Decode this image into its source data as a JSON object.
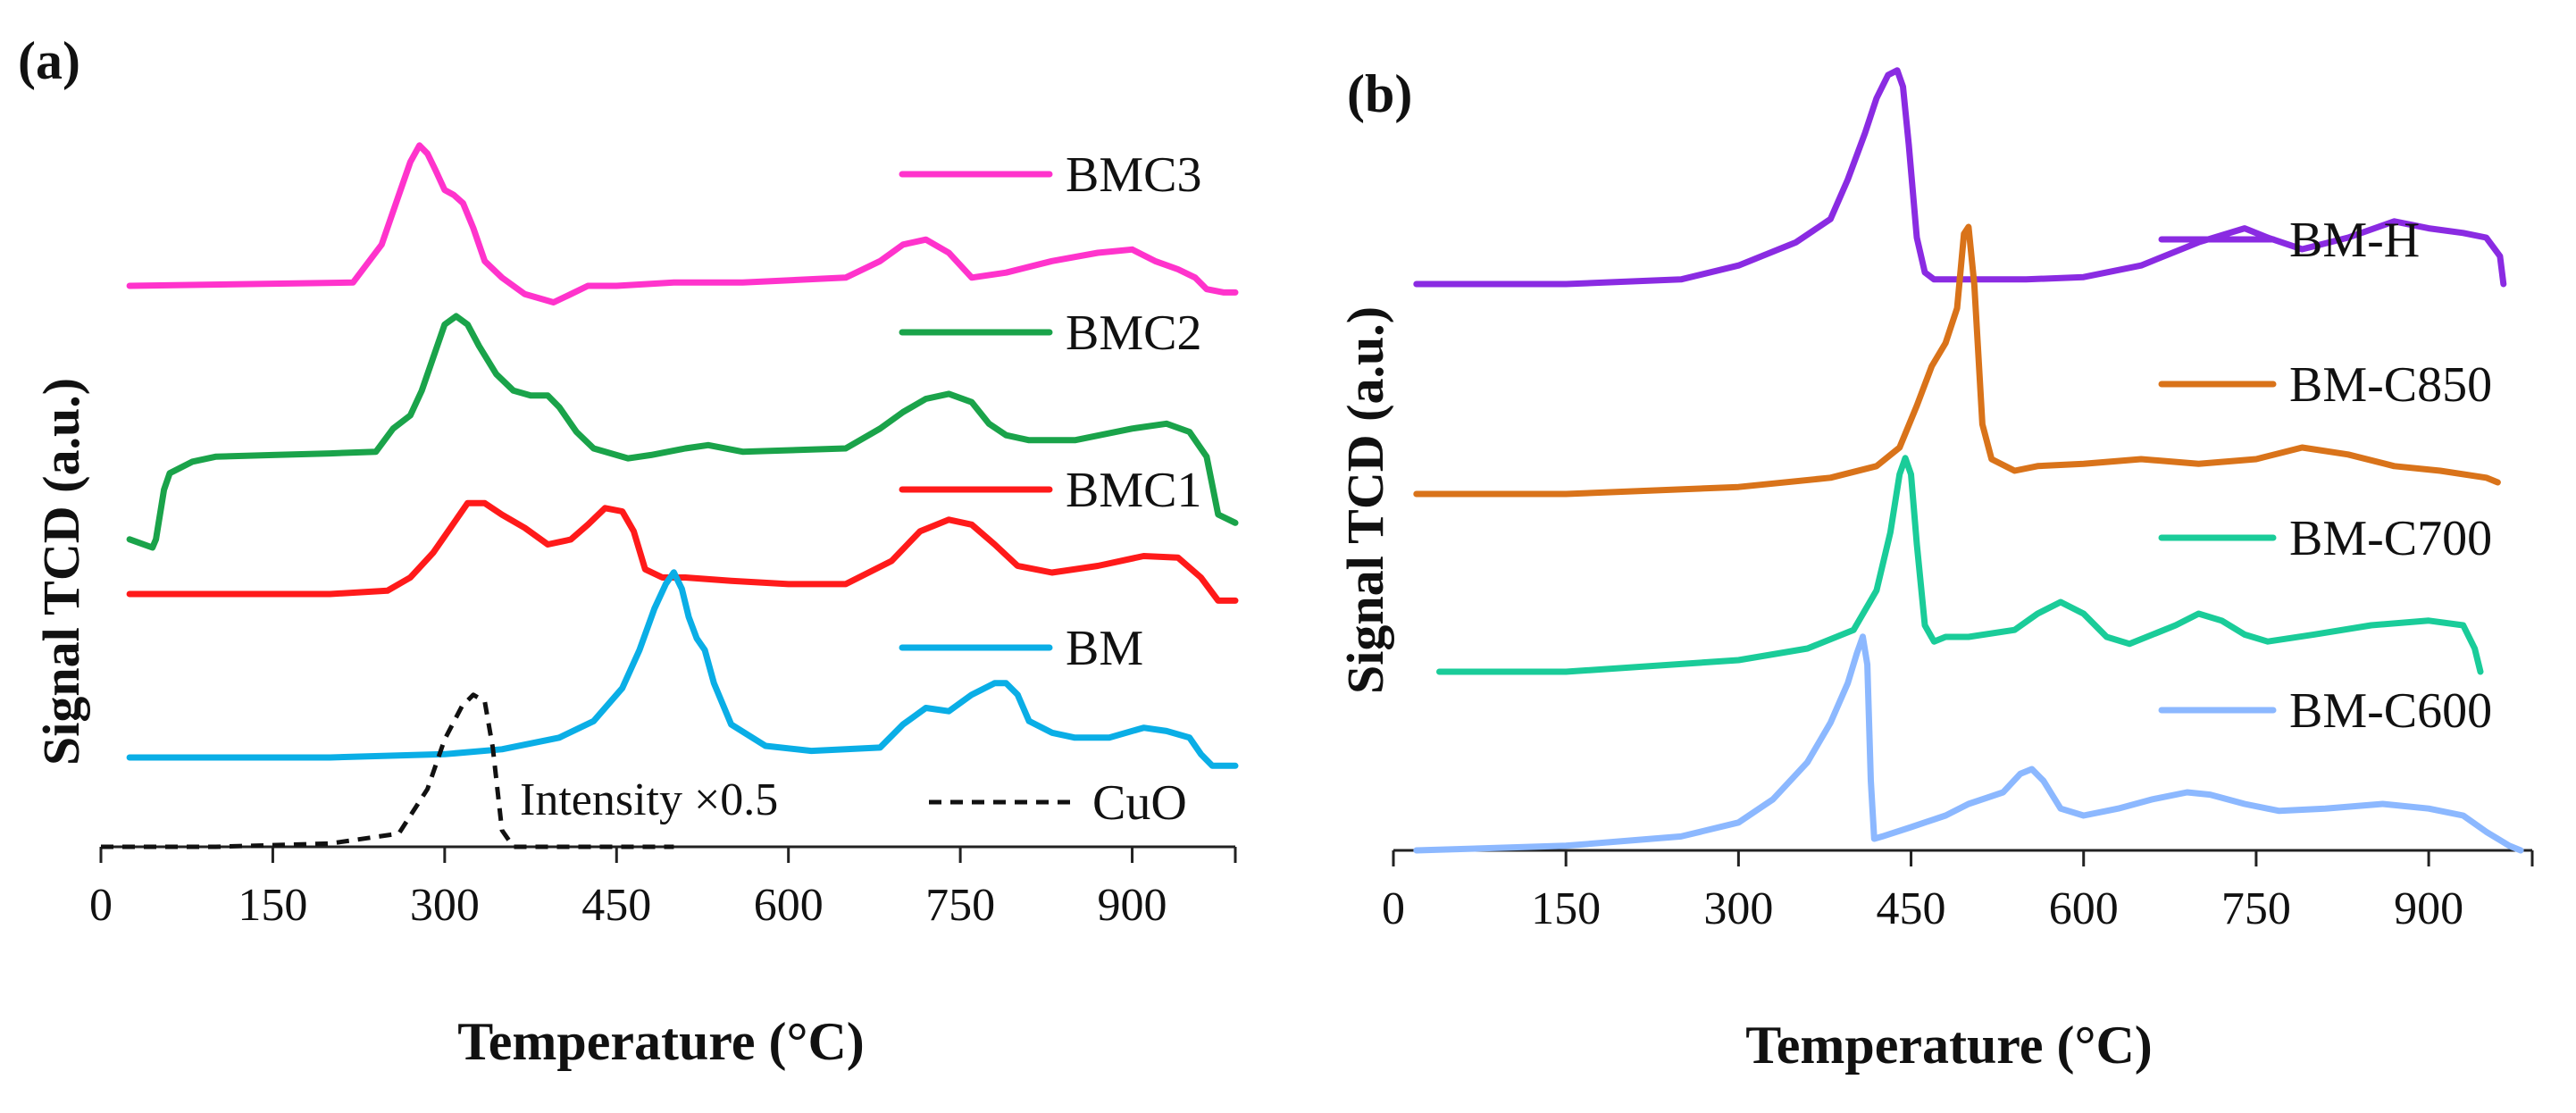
{
  "chart_data": [
    {
      "panel": "(a)",
      "type": "line",
      "xlabel": "Temperature (°C)",
      "ylabel": "Signal TCD (a.u.)",
      "xlim": [
        0,
        990
      ],
      "xticks": [
        "0",
        "150",
        "300",
        "450",
        "600",
        "750",
        "900"
      ],
      "xtick_values": [
        0,
        150,
        300,
        450,
        600,
        750,
        900
      ],
      "yaxis": "offset, arbitrary units",
      "annotation": "Intensity ×0.5",
      "series": [
        {
          "name": "BMC3",
          "color": "#ff33cc",
          "offset": 3.2,
          "x": [
            25,
            220,
            245,
            260,
            270,
            278,
            285,
            292,
            300,
            308,
            316,
            325,
            335,
            350,
            370,
            395,
            410,
            425,
            450,
            500,
            560,
            650,
            680,
            700,
            720,
            740,
            760,
            790,
            830,
            870,
            900,
            920,
            940,
            955,
            965,
            980,
            990
          ],
          "y": [
            0,
            0.02,
            0.25,
            0.55,
            0.75,
            0.85,
            0.8,
            0.7,
            0.58,
            0.55,
            0.5,
            0.35,
            0.15,
            0.05,
            -0.05,
            -0.1,
            -0.05,
            0,
            0,
            0.02,
            0.02,
            0.05,
            0.15,
            0.25,
            0.28,
            0.2,
            0.05,
            0.08,
            0.15,
            0.2,
            0.22,
            0.15,
            0.1,
            0.05,
            -0.02,
            -0.04,
            -0.04
          ]
        },
        {
          "name": "BMC2",
          "color": "#1aa34a",
          "offset": 2.0,
          "x": [
            25,
            45,
            48,
            55,
            60,
            80,
            100,
            150,
            200,
            240,
            255,
            270,
            280,
            290,
            300,
            310,
            320,
            330,
            345,
            360,
            375,
            390,
            400,
            415,
            430,
            460,
            480,
            510,
            530,
            560,
            650,
            680,
            700,
            720,
            740,
            760,
            775,
            790,
            810,
            850,
            900,
            930,
            950,
            965,
            975,
            990
          ],
          "y": [
            -0.55,
            -0.6,
            -0.55,
            -0.25,
            -0.15,
            -0.08,
            -0.05,
            -0.04,
            -0.03,
            -0.02,
            0.12,
            0.2,
            0.35,
            0.55,
            0.75,
            0.8,
            0.75,
            0.62,
            0.45,
            0.35,
            0.32,
            0.32,
            0.25,
            0.1,
            0,
            -0.06,
            -0.04,
            0,
            0.02,
            -0.02,
            0,
            0.12,
            0.22,
            0.3,
            0.33,
            0.28,
            0.15,
            0.08,
            0.05,
            0.05,
            0.12,
            0.15,
            0.1,
            -0.05,
            -0.4,
            -0.45
          ]
        },
        {
          "name": "BMC1",
          "color": "#ff1a1a",
          "offset": 1.0,
          "x": [
            25,
            200,
            250,
            270,
            290,
            305,
            320,
            335,
            350,
            370,
            390,
            410,
            425,
            440,
            455,
            465,
            475,
            490,
            510,
            550,
            600,
            650,
            690,
            715,
            740,
            760,
            780,
            800,
            830,
            870,
            910,
            940,
            960,
            975,
            990
          ],
          "y": [
            0,
            0,
            0.02,
            0.1,
            0.25,
            0.4,
            0.55,
            0.55,
            0.48,
            0.4,
            0.3,
            0.33,
            0.42,
            0.52,
            0.5,
            0.38,
            0.15,
            0.1,
            0.1,
            0.08,
            0.06,
            0.06,
            0.2,
            0.38,
            0.45,
            0.42,
            0.3,
            0.17,
            0.13,
            0.17,
            0.23,
            0.22,
            0.1,
            -0.04,
            -0.04
          ]
        },
        {
          "name": "BM",
          "color": "#0aaee6",
          "offset": 0.0,
          "x": [
            25,
            200,
            300,
            350,
            400,
            430,
            455,
            470,
            483,
            493,
            500,
            507,
            513,
            520,
            527,
            535,
            550,
            580,
            620,
            680,
            700,
            720,
            740,
            760,
            780,
            790,
            800,
            810,
            830,
            850,
            880,
            910,
            930,
            950,
            960,
            970,
            990
          ],
          "y": [
            0,
            0,
            0.02,
            0.05,
            0.12,
            0.22,
            0.42,
            0.65,
            0.9,
            1.05,
            1.12,
            1.02,
            0.85,
            0.72,
            0.65,
            0.45,
            0.2,
            0.07,
            0.04,
            0.06,
            0.2,
            0.3,
            0.28,
            0.38,
            0.45,
            0.45,
            0.38,
            0.22,
            0.15,
            0.12,
            0.12,
            0.18,
            0.16,
            0.12,
            0.02,
            -0.05,
            -0.05
          ]
        },
        {
          "name": "CuO",
          "color": "#111111",
          "dashed": true,
          "offset": -0.75,
          "x": [
            0,
            100,
            200,
            260,
            285,
            300,
            315,
            325,
            335,
            342,
            350,
            360,
            380,
            420,
            500
          ],
          "y": [
            0,
            0,
            0.02,
            0.08,
            0.35,
            0.65,
            0.85,
            0.92,
            0.88,
            0.6,
            0.1,
            0,
            0,
            0,
            0
          ]
        }
      ]
    },
    {
      "panel": "(b)",
      "type": "line",
      "xlabel": "Temperature (°C)",
      "ylabel": "Signal TCD (a.u.)",
      "xlim": [
        0,
        990
      ],
      "xticks": [
        "0",
        "150",
        "300",
        "450",
        "600",
        "750",
        "900"
      ],
      "xtick_values": [
        0,
        150,
        300,
        450,
        600,
        750,
        900
      ],
      "yaxis": "offset, arbitrary units",
      "series": [
        {
          "name": "BM-H",
          "color": "#8a2be2",
          "offset": 3.6,
          "x": [
            20,
            150,
            250,
            300,
            350,
            380,
            395,
            410,
            420,
            430,
            438,
            443,
            448,
            455,
            462,
            470,
            480,
            500,
            550,
            600,
            650,
            700,
            740,
            760,
            790,
            830,
            870,
            900,
            930,
            950,
            962,
            965
          ],
          "y": [
            0,
            0,
            0.02,
            0.08,
            0.18,
            0.28,
            0.45,
            0.65,
            0.8,
            0.9,
            0.92,
            0.85,
            0.6,
            0.2,
            0.05,
            0.02,
            0.02,
            0.02,
            0.02,
            0.03,
            0.08,
            0.18,
            0.24,
            0.2,
            0.15,
            0.2,
            0.27,
            0.24,
            0.22,
            0.2,
            0.12,
            0
          ]
        },
        {
          "name": "BM-C850",
          "color": "#d9731a",
          "offset": 2.45,
          "x": [
            20,
            150,
            300,
            380,
            420,
            440,
            455,
            468,
            480,
            490,
            496,
            500,
            505,
            512,
            520,
            540,
            560,
            600,
            650,
            700,
            750,
            790,
            830,
            870,
            910,
            950,
            960
          ],
          "y": [
            0,
            0,
            0.03,
            0.07,
            0.12,
            0.2,
            0.38,
            0.55,
            0.65,
            0.8,
            1.12,
            1.15,
            0.9,
            0.3,
            0.15,
            0.1,
            0.12,
            0.13,
            0.15,
            0.13,
            0.15,
            0.2,
            0.17,
            0.12,
            0.1,
            0.07,
            0.05
          ]
        },
        {
          "name": "BM-C700",
          "color": "#1acc99",
          "offset": 1.25,
          "x": [
            40,
            150,
            300,
            360,
            400,
            420,
            432,
            440,
            445,
            450,
            455,
            462,
            470,
            480,
            500,
            540,
            560,
            580,
            600,
            620,
            640,
            680,
            700,
            720,
            740,
            760,
            800,
            850,
            900,
            930,
            940,
            945
          ],
          "y": [
            0,
            0,
            0.05,
            0.1,
            0.18,
            0.35,
            0.6,
            0.85,
            0.92,
            0.85,
            0.55,
            0.2,
            0.13,
            0.15,
            0.15,
            0.18,
            0.25,
            0.3,
            0.25,
            0.15,
            0.12,
            0.2,
            0.25,
            0.22,
            0.16,
            0.13,
            0.16,
            0.2,
            0.22,
            0.2,
            0.1,
            0
          ]
        },
        {
          "name": "BM-C600",
          "color": "#8cb8ff",
          "offset": 0.0,
          "x": [
            20,
            150,
            250,
            300,
            330,
            360,
            380,
            395,
            403,
            408,
            412,
            415,
            418,
            425,
            450,
            480,
            500,
            530,
            545,
            555,
            565,
            580,
            600,
            630,
            660,
            690,
            710,
            740,
            770,
            810,
            860,
            900,
            930,
            950,
            970,
            980
          ],
          "y": [
            0,
            0.02,
            0.06,
            0.12,
            0.22,
            0.38,
            0.55,
            0.72,
            0.85,
            0.92,
            0.8,
            0.3,
            0.05,
            0.06,
            0.1,
            0.15,
            0.2,
            0.25,
            0.33,
            0.35,
            0.3,
            0.18,
            0.15,
            0.18,
            0.22,
            0.25,
            0.24,
            0.2,
            0.17,
            0.18,
            0.2,
            0.18,
            0.15,
            0.08,
            0.02,
            0
          ]
        }
      ]
    }
  ]
}
